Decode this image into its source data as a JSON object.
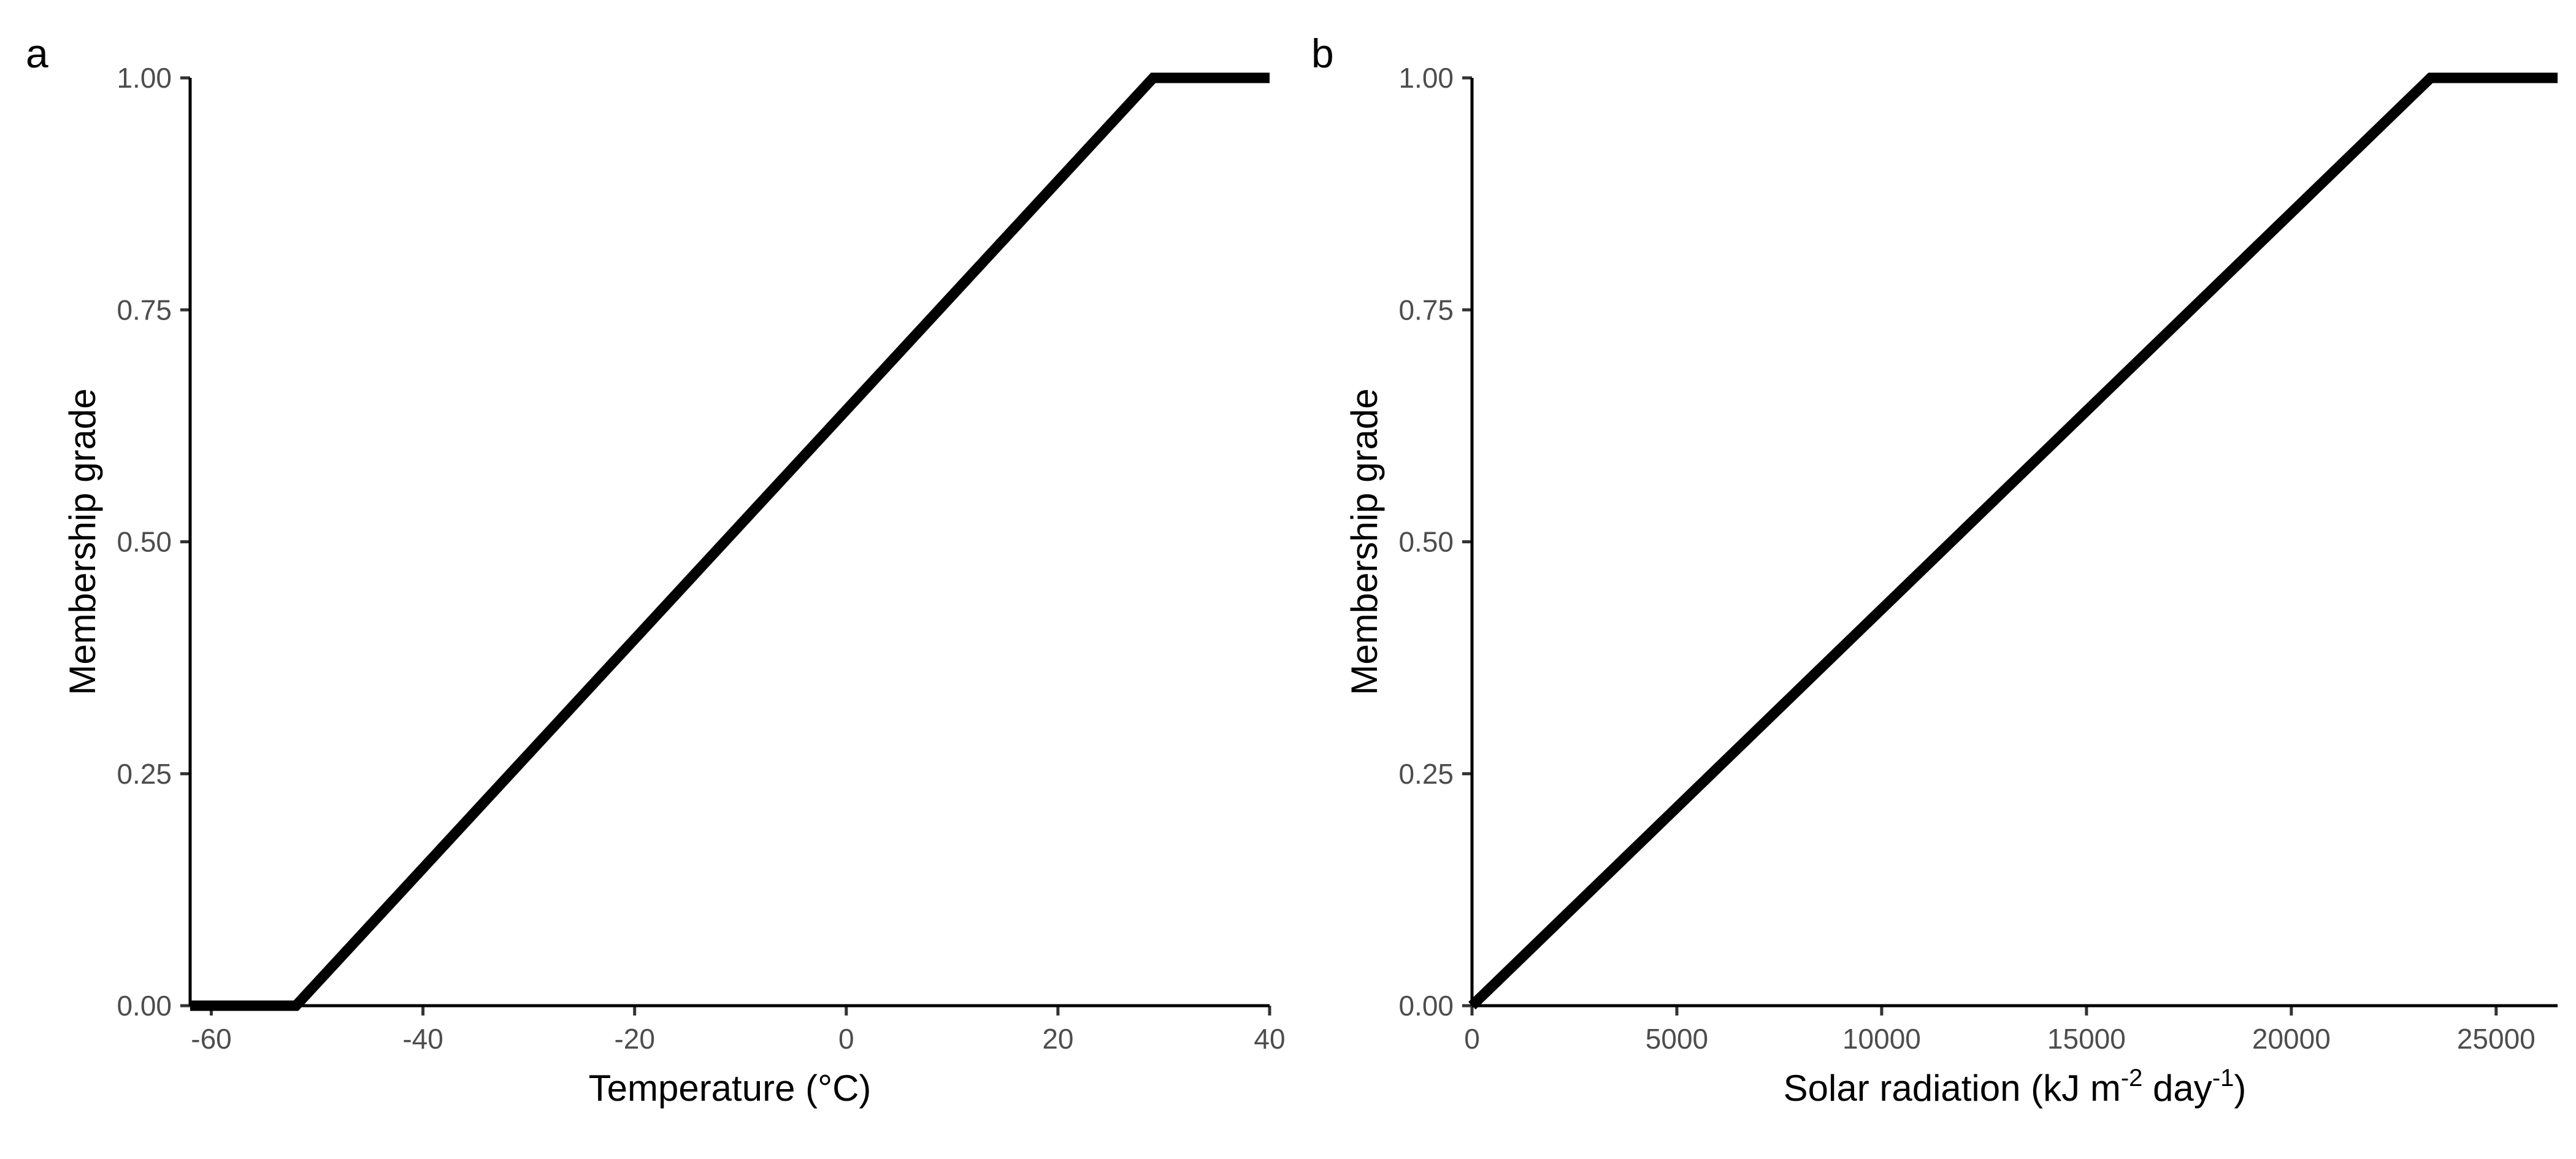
{
  "figure": {
    "background": "#ffffff",
    "line_color": "#000000"
  },
  "chart_data": [
    {
      "type": "line",
      "panel_tag": "a",
      "xlabel": "Temperature (°C)",
      "ylabel": "Membership grade",
      "xlim": [
        -62,
        40
      ],
      "ylim": [
        0,
        1
      ],
      "x_ticks": [
        -60,
        -40,
        -20,
        0,
        20,
        40
      ],
      "x_tick_labels": [
        "-60",
        "-40",
        "-20",
        "0",
        "20",
        "40"
      ],
      "y_ticks": [
        0,
        0.25,
        0.5,
        0.75,
        1
      ],
      "y_tick_labels": [
        "0.00",
        "0.25",
        "0.50",
        "0.75",
        "1.00"
      ],
      "grid": false,
      "legend": "none",
      "series": [
        {
          "x": [
            -62,
            -52,
            29,
            40
          ],
          "y": [
            0,
            0,
            1,
            1
          ]
        }
      ]
    },
    {
      "type": "line",
      "panel_tag": "b",
      "xlabel": "Solar radiation (kJ m-2 day-1)",
      "xlabel_parts": [
        "Solar radiation (kJ m",
        "-2",
        " day",
        "-1",
        ")"
      ],
      "ylabel": "Membership grade",
      "xlim": [
        0,
        26500
      ],
      "ylim": [
        0,
        1
      ],
      "x_ticks": [
        0,
        5000,
        10000,
        15000,
        20000,
        25000
      ],
      "x_tick_labels": [
        "0",
        "5000",
        "10000",
        "15000",
        "20000",
        "25000"
      ],
      "y_ticks": [
        0,
        0.25,
        0.5,
        0.75,
        1
      ],
      "y_tick_labels": [
        "0.00",
        "0.25",
        "0.50",
        "0.75",
        "1.00"
      ],
      "grid": false,
      "legend": "none",
      "series": [
        {
          "x": [
            0,
            23400,
            26500
          ],
          "y": [
            0,
            1,
            1
          ]
        }
      ]
    }
  ]
}
